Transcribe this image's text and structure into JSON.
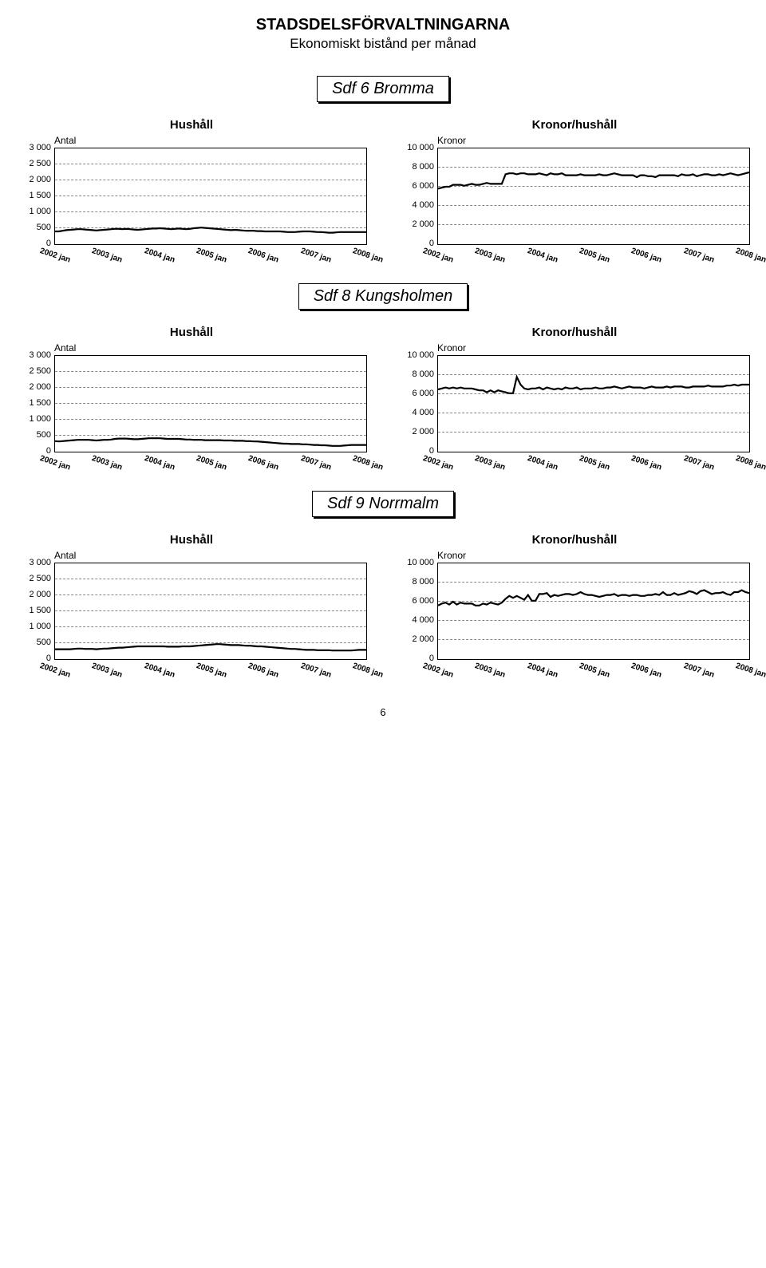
{
  "page_title": "STADSDELSFÖRVALTNINGARNA",
  "page_subtitle": "Ekonomiskt bistånd per månad",
  "page_number": "6",
  "x_categories": [
    "2002 jan",
    "2003 jan",
    "2004 jan",
    "2005 jan",
    "2006 jan",
    "2007 jan",
    "2008 jan"
  ],
  "line_color": "#000000",
  "line_width": 2.2,
  "grid_color": "#888888",
  "background_color": "#ffffff",
  "left_axis": {
    "label": "Antal",
    "ymin": 0,
    "ymax": 3000,
    "ticks": [
      0,
      500,
      1000,
      1500,
      2000,
      2500,
      3000
    ],
    "tick_labels": [
      "0",
      "500",
      "1 000",
      "1 500",
      "2 000",
      "2 500",
      "3 000"
    ]
  },
  "right_axis": {
    "label": "Kronor",
    "ymin": 0,
    "ymax": 10000,
    "ticks": [
      0,
      2000,
      4000,
      6000,
      8000,
      10000
    ],
    "tick_labels": [
      "0",
      "2 000",
      "4 000",
      "6 000",
      "8 000",
      "10 000"
    ]
  },
  "sections": [
    {
      "name": "Sdf 6 Bromma",
      "left": {
        "title": "Hushåll",
        "values": [
          400,
          400,
          420,
          440,
          450,
          460,
          470,
          470,
          460,
          450,
          440,
          430,
          440,
          450,
          460,
          470,
          480,
          480,
          470,
          480,
          470,
          460,
          450,
          460,
          470,
          480,
          490,
          490,
          500,
          490,
          480,
          470,
          480,
          490,
          480,
          470,
          480,
          500,
          510,
          520,
          510,
          500,
          490,
          480,
          470,
          460,
          450,
          440,
          450,
          440,
          430,
          420,
          420,
          420,
          410,
          410,
          400,
          400,
          400,
          400,
          400,
          390,
          380,
          380,
          380,
          390,
          400,
          400,
          400,
          390,
          380,
          380,
          370,
          360,
          360,
          370,
          380,
          380,
          380,
          380,
          380,
          380,
          380,
          380
        ]
      },
      "right": {
        "title": "Kronor/hushåll",
        "values": [
          5800,
          5900,
          6000,
          6000,
          6200,
          6200,
          6200,
          6100,
          6200,
          6300,
          6200,
          6200,
          6300,
          6400,
          6300,
          6300,
          6300,
          6300,
          7300,
          7400,
          7400,
          7300,
          7400,
          7400,
          7300,
          7300,
          7300,
          7400,
          7300,
          7200,
          7400,
          7300,
          7300,
          7400,
          7200,
          7200,
          7200,
          7200,
          7300,
          7200,
          7200,
          7200,
          7200,
          7300,
          7200,
          7200,
          7300,
          7400,
          7300,
          7200,
          7200,
          7200,
          7200,
          7000,
          7200,
          7200,
          7100,
          7100,
          7000,
          7200,
          7200,
          7200,
          7200,
          7200,
          7100,
          7300,
          7200,
          7200,
          7300,
          7100,
          7200,
          7300,
          7300,
          7200,
          7200,
          7300,
          7200,
          7300,
          7400,
          7300,
          7200,
          7300,
          7400,
          7500
        ]
      }
    },
    {
      "name": "Sdf 8 Kungsholmen",
      "left": {
        "title": "Hushåll",
        "values": [
          330,
          320,
          330,
          340,
          350,
          360,
          370,
          370,
          370,
          370,
          360,
          350,
          360,
          370,
          370,
          380,
          400,
          410,
          410,
          410,
          400,
          390,
          390,
          400,
          410,
          420,
          420,
          420,
          420,
          410,
          400,
          400,
          400,
          400,
          390,
          380,
          380,
          370,
          370,
          370,
          360,
          360,
          360,
          360,
          360,
          350,
          350,
          350,
          340,
          340,
          340,
          330,
          330,
          320,
          320,
          310,
          300,
          290,
          280,
          270,
          260,
          250,
          250,
          240,
          240,
          240,
          230,
          230,
          220,
          210,
          210,
          200,
          200,
          190,
          180,
          180,
          180,
          190,
          200,
          210,
          210,
          210,
          210,
          210
        ]
      },
      "right": {
        "title": "Kronor/hushåll",
        "values": [
          6500,
          6600,
          6700,
          6600,
          6700,
          6600,
          6700,
          6600,
          6600,
          6600,
          6500,
          6400,
          6400,
          6200,
          6400,
          6200,
          6400,
          6300,
          6200,
          6100,
          6100,
          7800,
          7000,
          6600,
          6500,
          6600,
          6600,
          6700,
          6500,
          6700,
          6600,
          6500,
          6600,
          6500,
          6700,
          6600,
          6600,
          6700,
          6500,
          6600,
          6600,
          6600,
          6700,
          6600,
          6600,
          6700,
          6700,
          6800,
          6700,
          6600,
          6700,
          6800,
          6700,
          6700,
          6700,
          6600,
          6700,
          6800,
          6700,
          6700,
          6700,
          6800,
          6700,
          6800,
          6800,
          6800,
          6700,
          6700,
          6800,
          6800,
          6800,
          6800,
          6900,
          6800,
          6800,
          6800,
          6800,
          6900,
          6900,
          7000,
          6900,
          7000,
          7000,
          7000
        ]
      }
    },
    {
      "name": "Sdf 9 Norrmalm",
      "left": {
        "title": "Hushåll",
        "values": [
          310,
          310,
          310,
          310,
          310,
          320,
          330,
          330,
          320,
          320,
          320,
          310,
          320,
          330,
          330,
          340,
          350,
          360,
          360,
          370,
          380,
          390,
          400,
          400,
          400,
          400,
          400,
          400,
          400,
          400,
          390,
          390,
          390,
          390,
          400,
          400,
          400,
          410,
          420,
          430,
          440,
          450,
          460,
          470,
          470,
          460,
          450,
          440,
          440,
          440,
          430,
          420,
          420,
          410,
          400,
          400,
          390,
          380,
          370,
          360,
          350,
          340,
          330,
          320,
          320,
          310,
          300,
          290,
          290,
          290,
          280,
          280,
          280,
          280,
          270,
          270,
          270,
          270,
          270,
          270,
          280,
          290,
          290,
          290
        ]
      },
      "right": {
        "title": "Kronor/hushåll",
        "values": [
          5600,
          5800,
          5900,
          5700,
          6000,
          5700,
          5900,
          5800,
          5800,
          5800,
          5600,
          5600,
          5800,
          5700,
          5900,
          5800,
          5700,
          5900,
          6300,
          6600,
          6400,
          6600,
          6400,
          6200,
          6700,
          6100,
          6100,
          6800,
          6800,
          6900,
          6500,
          6700,
          6600,
          6700,
          6800,
          6800,
          6700,
          6800,
          7000,
          6800,
          6700,
          6700,
          6600,
          6500,
          6600,
          6700,
          6700,
          6800,
          6600,
          6700,
          6700,
          6600,
          6700,
          6700,
          6600,
          6600,
          6700,
          6700,
          6800,
          6700,
          7000,
          6700,
          6700,
          6900,
          6700,
          6800,
          6900,
          7100,
          7000,
          6800,
          7100,
          7200,
          7000,
          6800,
          6900,
          6900,
          7000,
          6800,
          6700,
          7000,
          7000,
          7200,
          7000,
          6900
        ]
      }
    }
  ]
}
